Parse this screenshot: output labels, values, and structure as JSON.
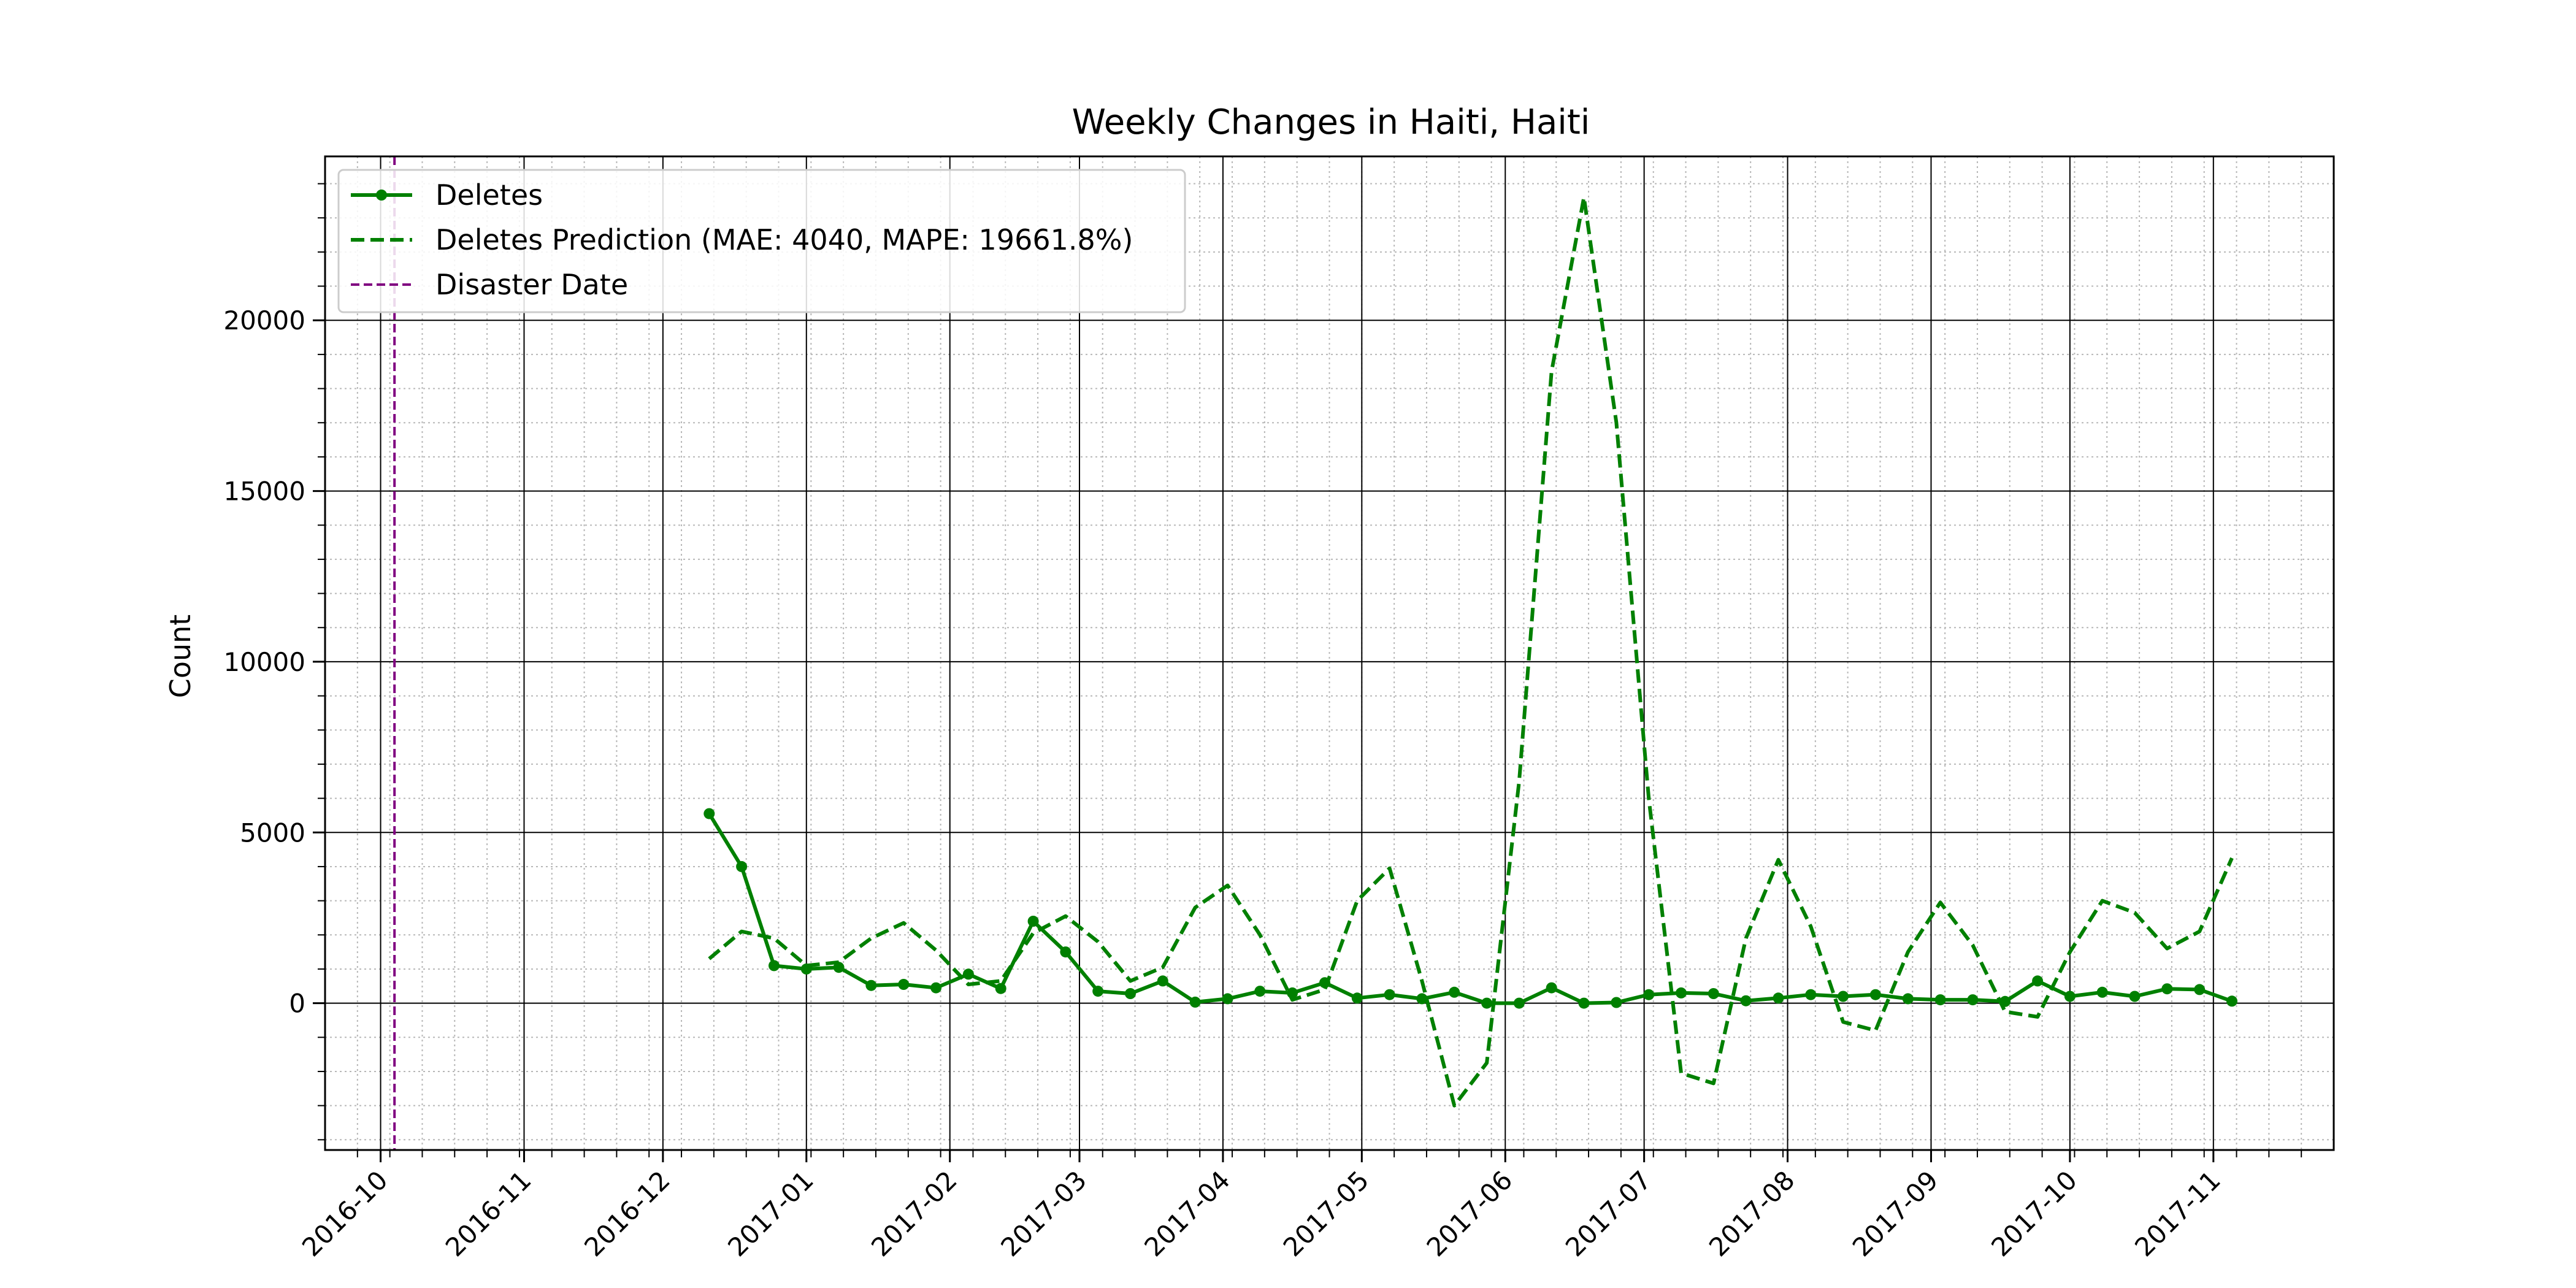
{
  "chart_data": {
    "type": "line",
    "title": "Weekly Changes in Haiti, Haiti",
    "xlabel": "",
    "ylabel": "Count",
    "x_axis_type": "date",
    "xlim": [
      "2016-09-19",
      "2017-11-27"
    ],
    "ylim": [
      -4300,
      24800
    ],
    "x_ticks": [
      "2016-10",
      "2016-11",
      "2016-12",
      "2017-01",
      "2017-02",
      "2017-03",
      "2017-04",
      "2017-05",
      "2017-06",
      "2017-07",
      "2017-08",
      "2017-09",
      "2017-10",
      "2017-11"
    ],
    "y_ticks": [
      0,
      5000,
      10000,
      15000,
      20000
    ],
    "y_tick_labels": [
      "0",
      "5000",
      "10000",
      "15000",
      "20000"
    ],
    "grid": "major solid, minor dotted",
    "legend_position": "top-left",
    "series": [
      {
        "name": "Deletes",
        "color": "#008000",
        "style": "solid-with-markers",
        "points": [
          [
            "2016-12-11",
            5550
          ],
          [
            "2016-12-18",
            4000
          ],
          [
            "2016-12-25",
            1100
          ],
          [
            "2017-01-01",
            1000
          ],
          [
            "2017-01-08",
            1050
          ],
          [
            "2017-01-15",
            520
          ],
          [
            "2017-01-22",
            550
          ],
          [
            "2017-01-29",
            450
          ],
          [
            "2017-02-05",
            850
          ],
          [
            "2017-02-12",
            430
          ],
          [
            "2017-02-19",
            2400
          ],
          [
            "2017-02-26",
            1500
          ],
          [
            "2017-03-05",
            350
          ],
          [
            "2017-03-12",
            280
          ],
          [
            "2017-03-19",
            650
          ],
          [
            "2017-03-26",
            30
          ],
          [
            "2017-04-02",
            130
          ],
          [
            "2017-04-09",
            350
          ],
          [
            "2017-04-16",
            300
          ],
          [
            "2017-04-23",
            600
          ],
          [
            "2017-04-30",
            150
          ],
          [
            "2017-05-07",
            250
          ],
          [
            "2017-05-14",
            130
          ],
          [
            "2017-05-21",
            320
          ],
          [
            "2017-05-28",
            0
          ],
          [
            "2017-06-04",
            0
          ],
          [
            "2017-06-11",
            450
          ],
          [
            "2017-06-18",
            0
          ],
          [
            "2017-06-25",
            20
          ],
          [
            "2017-07-02",
            250
          ],
          [
            "2017-07-09",
            300
          ],
          [
            "2017-07-16",
            280
          ],
          [
            "2017-07-23",
            70
          ],
          [
            "2017-07-30",
            150
          ],
          [
            "2017-08-06",
            250
          ],
          [
            "2017-08-13",
            200
          ],
          [
            "2017-08-20",
            250
          ],
          [
            "2017-08-27",
            130
          ],
          [
            "2017-09-03",
            100
          ],
          [
            "2017-09-10",
            100
          ],
          [
            "2017-09-17",
            50
          ],
          [
            "2017-09-24",
            650
          ],
          [
            "2017-10-01",
            200
          ],
          [
            "2017-10-08",
            320
          ],
          [
            "2017-10-15",
            200
          ],
          [
            "2017-10-22",
            420
          ],
          [
            "2017-10-29",
            400
          ],
          [
            "2017-11-05",
            60
          ]
        ]
      },
      {
        "name": "Deletes Prediction (MAE: 4040, MAPE: 19661.8%)",
        "color": "#008000",
        "style": "dashed",
        "points": [
          [
            "2016-12-11",
            1300
          ],
          [
            "2016-12-18",
            2100
          ],
          [
            "2016-12-25",
            1900
          ],
          [
            "2017-01-01",
            1100
          ],
          [
            "2017-01-08",
            1200
          ],
          [
            "2017-01-15",
            1900
          ],
          [
            "2017-01-22",
            2350
          ],
          [
            "2017-01-29",
            1550
          ],
          [
            "2017-02-05",
            550
          ],
          [
            "2017-02-12",
            650
          ],
          [
            "2017-02-19",
            2050
          ],
          [
            "2017-02-26",
            2550
          ],
          [
            "2017-03-05",
            1800
          ],
          [
            "2017-03-12",
            650
          ],
          [
            "2017-03-19",
            1050
          ],
          [
            "2017-03-26",
            2800
          ],
          [
            "2017-04-02",
            3450
          ],
          [
            "2017-04-09",
            2000
          ],
          [
            "2017-04-16",
            100
          ],
          [
            "2017-04-23",
            400
          ],
          [
            "2017-04-30",
            3000
          ],
          [
            "2017-05-07",
            3950
          ],
          [
            "2017-05-14",
            650
          ],
          [
            "2017-05-21",
            -3000
          ],
          [
            "2017-05-28",
            -1750
          ],
          [
            "2017-06-04",
            6500
          ],
          [
            "2017-06-11",
            18500
          ],
          [
            "2017-06-18",
            23600
          ],
          [
            "2017-06-25",
            17000
          ],
          [
            "2017-07-02",
            6000
          ],
          [
            "2017-07-09",
            -2050
          ],
          [
            "2017-07-16",
            -2350
          ],
          [
            "2017-07-23",
            1900
          ],
          [
            "2017-07-30",
            4200
          ],
          [
            "2017-08-06",
            2250
          ],
          [
            "2017-08-13",
            -550
          ],
          [
            "2017-08-20",
            -800
          ],
          [
            "2017-08-27",
            1500
          ],
          [
            "2017-09-03",
            2950
          ],
          [
            "2017-09-10",
            1700
          ],
          [
            "2017-09-17",
            -250
          ],
          [
            "2017-09-24",
            -400
          ],
          [
            "2017-10-01",
            1500
          ],
          [
            "2017-10-08",
            3000
          ],
          [
            "2017-10-15",
            2650
          ],
          [
            "2017-10-22",
            1600
          ],
          [
            "2017-10-29",
            2100
          ],
          [
            "2017-11-05",
            4250
          ]
        ]
      },
      {
        "name": "Disaster Date",
        "color": "#800080",
        "style": "dashed-vertical",
        "x": "2016-10-04"
      }
    ]
  }
}
